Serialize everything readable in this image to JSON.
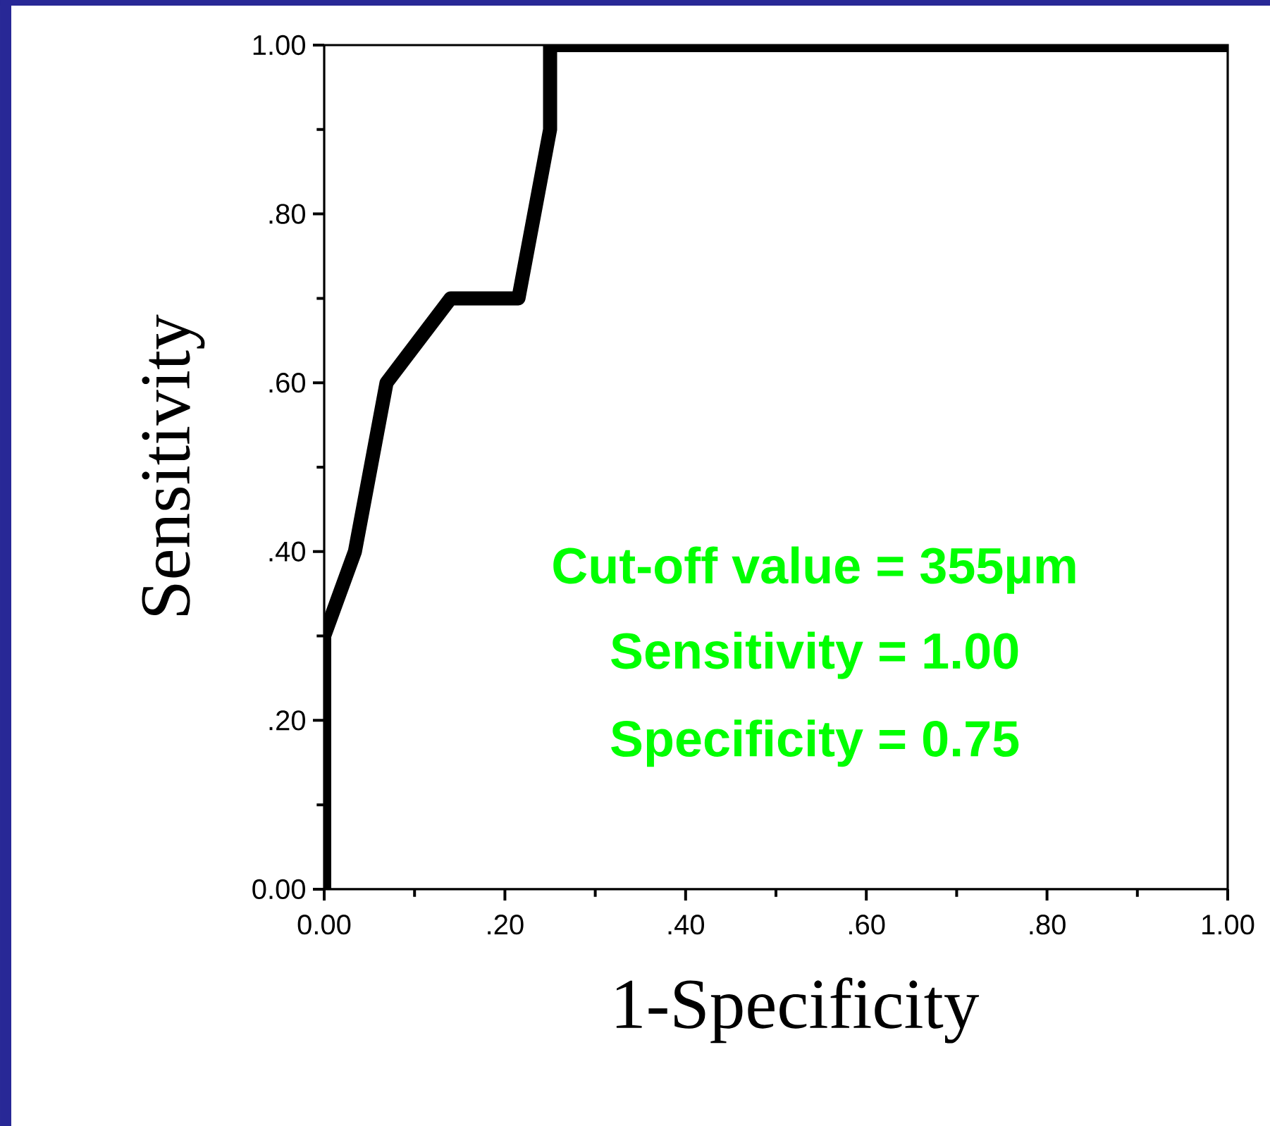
{
  "chart_data": {
    "type": "line",
    "xlabel": "1-Specificity",
    "ylabel": "Sensitivity",
    "x": [
      0.0,
      0.0,
      0.034,
      0.069,
      0.14,
      0.215,
      0.25,
      0.25,
      1.0
    ],
    "series": [
      {
        "color": "#000000",
        "values": [
          0.0,
          0.3,
          0.4,
          0.6,
          0.7,
          0.7,
          0.9,
          1.0,
          1.0
        ]
      }
    ],
    "xlim": [
      0,
      1
    ],
    "ylim": [
      0,
      1
    ],
    "xticks": [
      {
        "value": 0,
        "label": "0.00"
      },
      {
        "value": 0.2,
        "label": ".20"
      },
      {
        "value": 0.4,
        "label": ".40"
      },
      {
        "value": 0.6,
        "label": ".60"
      },
      {
        "value": 0.8,
        "label": ".80"
      },
      {
        "value": 1,
        "label": "1.00"
      }
    ],
    "yticks": [
      {
        "value": 0,
        "label": "0.00"
      },
      {
        "value": 0.2,
        "label": ".20"
      },
      {
        "value": 0.4,
        "label": ".40"
      },
      {
        "value": 0.6,
        "label": ".60"
      },
      {
        "value": 0.8,
        "label": ".80"
      },
      {
        "value": 1,
        "label": "1.00"
      }
    ],
    "annotations": [
      "Cut-off value = 355µm",
      "Sensitivity = 1.00",
      "Specificity = 0.75"
    ],
    "grid": false,
    "marker": "none",
    "line_style": "solid"
  }
}
